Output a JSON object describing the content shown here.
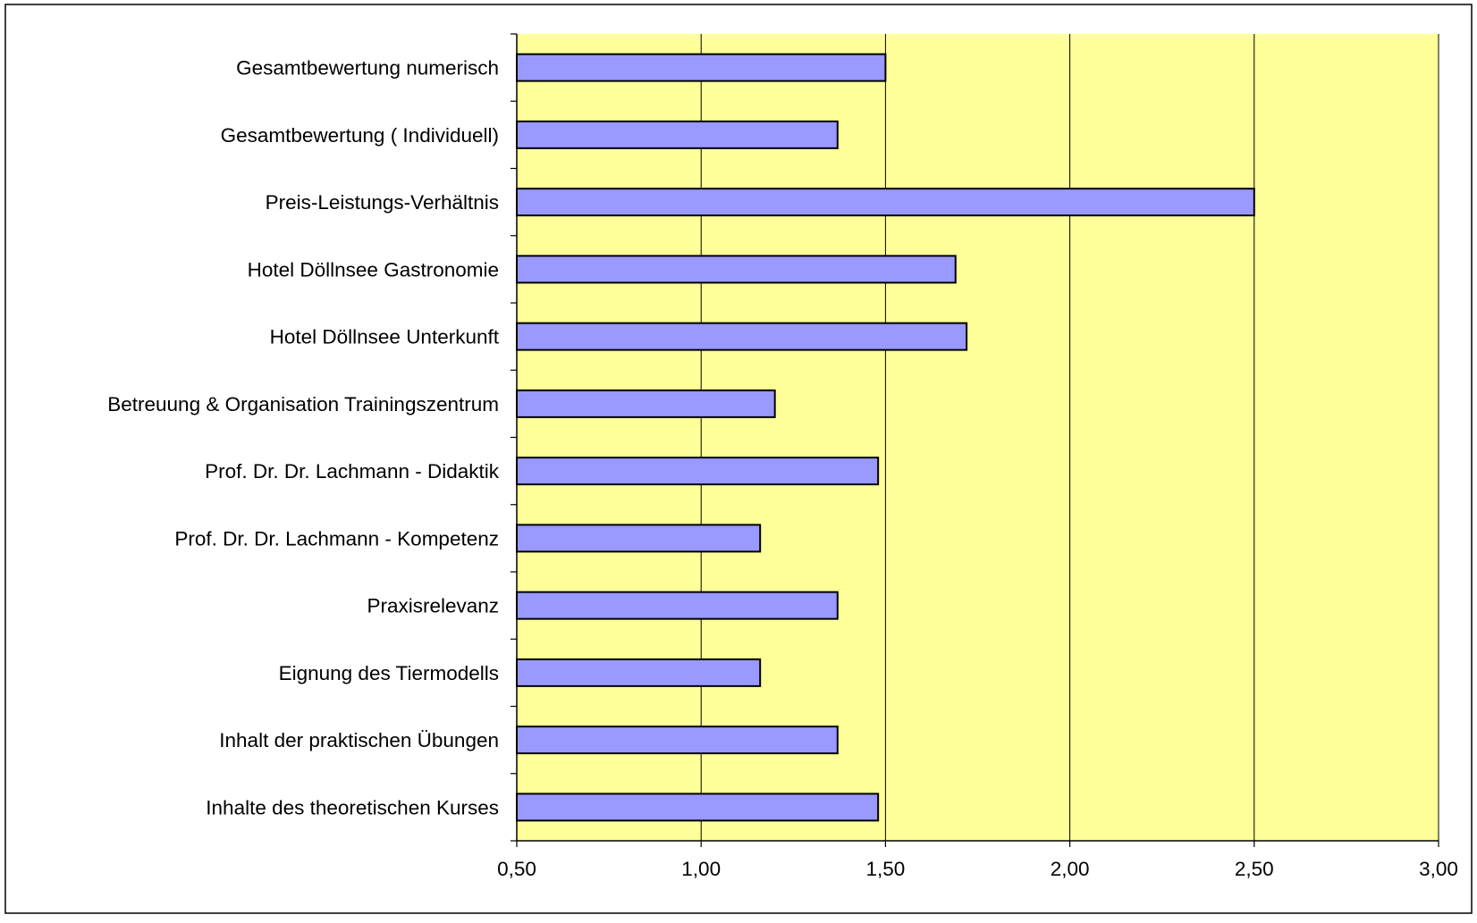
{
  "chart_data": {
    "type": "bar",
    "orientation": "horizontal",
    "title": "",
    "xlabel": "",
    "ylabel": "",
    "categories": [
      "Gesamtbewertung numerisch",
      "Gesamtbewertung ( Individuell)",
      "Preis-Leistungs-Verhältnis",
      "Hotel Döllnsee Gastronomie",
      "Hotel Döllnsee Unterkunft",
      "Betreuung & Organisation Trainingszentrum",
      "Prof. Dr. Dr. Lachmann - Didaktik",
      "Prof. Dr. Dr. Lachmann - Kompetenz",
      "Praxisrelevanz",
      "Eignung des Tiermodells",
      "Inhalt der praktischen Übungen",
      "Inhalte des theoretischen Kurses"
    ],
    "values": [
      1.5,
      1.37,
      2.5,
      1.69,
      1.72,
      1.2,
      1.48,
      1.16,
      1.37,
      1.16,
      1.37,
      1.48
    ],
    "xlim": [
      0.5,
      3.0
    ],
    "xticks": [
      "0,50",
      "1,00",
      "1,50",
      "2,00",
      "2,50",
      "3,00"
    ],
    "xtick_values": [
      0.5,
      1.0,
      1.5,
      2.0,
      2.5,
      3.0
    ],
    "grid": "vertical",
    "legend": "none",
    "colors": {
      "bar_fill": "#9999ff",
      "bar_stroke": "#000000",
      "plot_background": "#ffff99",
      "gridline": "#000000",
      "frame": "#000000",
      "text": "#000000"
    }
  }
}
